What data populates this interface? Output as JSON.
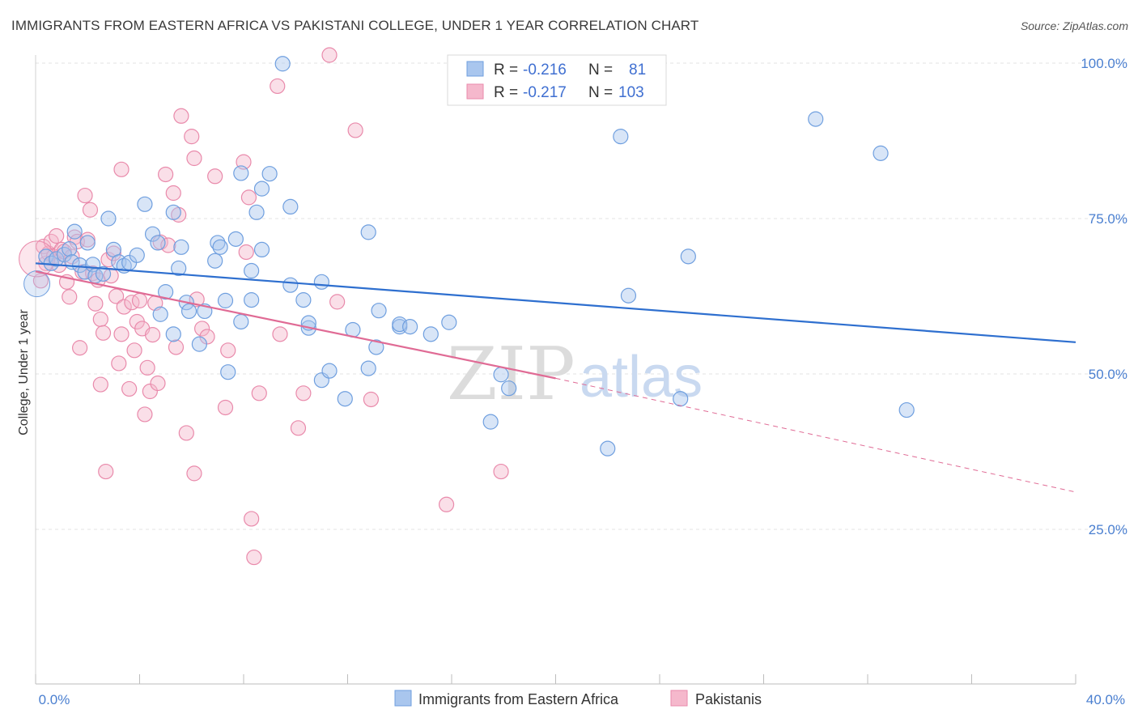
{
  "header": {
    "title": "IMMIGRANTS FROM EASTERN AFRICA VS PAKISTANI COLLEGE, UNDER 1 YEAR CORRELATION CHART",
    "source": "Source: ZipAtlas.com"
  },
  "watermark": {
    "zip": "ZIP",
    "atlas": "atlas"
  },
  "legend": {
    "rows": [
      {
        "r_label": "R =",
        "r_value": "-0.216",
        "n_label": "N =",
        "n_value": "81"
      },
      {
        "r_label": "R =",
        "r_value": "-0.217",
        "n_label": "N =",
        "n_value": "103"
      }
    ]
  },
  "bottom_legend": {
    "items": [
      "Immigrants from Eastern Africa",
      "Pakistanis"
    ]
  },
  "colors": {
    "blue_fill": "#a9c6ee",
    "blue_stroke": "#6f9fdf",
    "blue_line": "#2e6fcf",
    "pink_fill": "#f5b8cc",
    "pink_stroke": "#e98aab",
    "pink_line": "#e06b95",
    "tick_label": "#4a7fd0",
    "grid": "#e3e3e3"
  },
  "chart_data": {
    "type": "scatter",
    "title": "IMMIGRANTS FROM EASTERN AFRICA VS PAKISTANI COLLEGE, UNDER 1 YEAR CORRELATION CHART",
    "xlabel": "",
    "ylabel": "College, Under 1 year",
    "xlim": [
      0,
      40
    ],
    "ylim": [
      0,
      100
    ],
    "x_tick_labels": [
      "0.0%",
      "40.0%"
    ],
    "y_ticks": [
      25,
      50,
      75,
      100
    ],
    "y_tick_labels": [
      "25.0%",
      "50.0%",
      "75.0%",
      "100.0%"
    ],
    "grid": "horizontal dashed",
    "legend_position": "top-center",
    "series": [
      {
        "name": "Immigrants from Eastern Africa",
        "trend": {
          "x": [
            0,
            40
          ],
          "y": [
            67.8,
            55.1
          ]
        },
        "points": [
          [
            0.4,
            68.9
          ],
          [
            0.6,
            67.8
          ],
          [
            0.8,
            68.5
          ],
          [
            1.1,
            69.2
          ],
          [
            1.3,
            70.1
          ],
          [
            1.4,
            68.0
          ],
          [
            1.5,
            72.9
          ],
          [
            1.7,
            67.5
          ],
          [
            1.9,
            66.4
          ],
          [
            2.0,
            71.1
          ],
          [
            2.2,
            67.6
          ],
          [
            2.3,
            65.8
          ],
          [
            2.6,
            66.1
          ],
          [
            2.8,
            75.0
          ],
          [
            3.0,
            70.0
          ],
          [
            3.2,
            68.0
          ],
          [
            3.4,
            67.4
          ],
          [
            3.6,
            67.9
          ],
          [
            3.9,
            69.1
          ],
          [
            4.2,
            77.3
          ],
          [
            4.5,
            72.5
          ],
          [
            4.7,
            71.1
          ],
          [
            4.8,
            59.6
          ],
          [
            5.0,
            63.2
          ],
          [
            5.3,
            56.4
          ],
          [
            5.3,
            76.0
          ],
          [
            5.5,
            67.0
          ],
          [
            5.6,
            70.4
          ],
          [
            5.8,
            61.5
          ],
          [
            5.9,
            60.1
          ],
          [
            6.3,
            54.8
          ],
          [
            6.5,
            60.1
          ],
          [
            6.9,
            68.2
          ],
          [
            7.0,
            71.1
          ],
          [
            7.1,
            70.4
          ],
          [
            7.3,
            61.8
          ],
          [
            7.4,
            50.3
          ],
          [
            7.7,
            71.7
          ],
          [
            7.9,
            58.4
          ],
          [
            7.9,
            82.3
          ],
          [
            8.3,
            61.9
          ],
          [
            8.3,
            66.6
          ],
          [
            8.5,
            76.0
          ],
          [
            8.7,
            70.0
          ],
          [
            8.7,
            79.8
          ],
          [
            9.0,
            82.2
          ],
          [
            9.5,
            99.9
          ],
          [
            9.8,
            76.9
          ],
          [
            9.8,
            64.3
          ],
          [
            10.3,
            61.9
          ],
          [
            10.5,
            57.4
          ],
          [
            10.5,
            58.2
          ],
          [
            11.0,
            49.0
          ],
          [
            11.0,
            64.8
          ],
          [
            11.3,
            50.5
          ],
          [
            11.9,
            46.0
          ],
          [
            12.2,
            57.1
          ],
          [
            12.8,
            50.9
          ],
          [
            12.8,
            72.8
          ],
          [
            13.1,
            54.3
          ],
          [
            13.2,
            60.2
          ],
          [
            14.0,
            57.6
          ],
          [
            14.0,
            58.0
          ],
          [
            14.4,
            57.6
          ],
          [
            15.2,
            56.4
          ],
          [
            15.9,
            58.3
          ],
          [
            17.5,
            42.3
          ],
          [
            17.9,
            49.9
          ],
          [
            18.2,
            47.7
          ],
          [
            22.0,
            38.0
          ],
          [
            22.5,
            88.2
          ],
          [
            22.8,
            62.6
          ],
          [
            24.8,
            46.0
          ],
          [
            25.1,
            68.9
          ],
          [
            30.0,
            91.0
          ],
          [
            32.5,
            85.5
          ],
          [
            33.5,
            44.2
          ]
        ]
      },
      {
        "name": "Pakistanis",
        "trend": {
          "x": [
            0,
            20
          ],
          "y": [
            66.5,
            49.3
          ]
        },
        "trend_dashed": {
          "x": [
            20,
            40
          ],
          "y": [
            49.3,
            31.0
          ]
        },
        "points": [
          [
            0.2,
            65.0
          ],
          [
            0.3,
            70.5
          ],
          [
            0.4,
            67.8
          ],
          [
            0.5,
            69.4
          ],
          [
            0.6,
            71.3
          ],
          [
            0.7,
            68.9
          ],
          [
            0.8,
            72.2
          ],
          [
            0.9,
            67.5
          ],
          [
            1.0,
            70.0
          ],
          [
            1.1,
            69.7
          ],
          [
            1.2,
            64.8
          ],
          [
            1.3,
            62.4
          ],
          [
            1.4,
            68.9
          ],
          [
            1.5,
            72.0
          ],
          [
            1.6,
            71.3
          ],
          [
            1.7,
            54.2
          ],
          [
            1.8,
            66.4
          ],
          [
            1.9,
            78.7
          ],
          [
            2.0,
            71.6
          ],
          [
            2.1,
            76.4
          ],
          [
            2.2,
            66.2
          ],
          [
            2.3,
            61.3
          ],
          [
            2.4,
            65.1
          ],
          [
            2.5,
            58.8
          ],
          [
            2.5,
            48.3
          ],
          [
            2.6,
            56.6
          ],
          [
            2.7,
            34.3
          ],
          [
            2.8,
            68.4
          ],
          [
            2.9,
            65.8
          ],
          [
            3.0,
            69.4
          ],
          [
            3.1,
            62.5
          ],
          [
            3.2,
            51.7
          ],
          [
            3.3,
            56.4
          ],
          [
            3.3,
            82.9
          ],
          [
            3.4,
            60.8
          ],
          [
            3.6,
            47.6
          ],
          [
            3.7,
            61.5
          ],
          [
            3.8,
            53.8
          ],
          [
            3.9,
            58.4
          ],
          [
            4.0,
            61.8
          ],
          [
            4.1,
            57.3
          ],
          [
            4.2,
            43.5
          ],
          [
            4.3,
            51.0
          ],
          [
            4.4,
            47.2
          ],
          [
            4.5,
            56.3
          ],
          [
            4.6,
            61.4
          ],
          [
            4.7,
            48.5
          ],
          [
            4.8,
            71.2
          ],
          [
            5.0,
            82.1
          ],
          [
            5.1,
            70.7
          ],
          [
            5.3,
            79.1
          ],
          [
            5.4,
            54.3
          ],
          [
            5.5,
            75.6
          ],
          [
            5.6,
            91.5
          ],
          [
            5.8,
            40.5
          ],
          [
            6.0,
            88.2
          ],
          [
            6.1,
            84.7
          ],
          [
            6.1,
            34.0
          ],
          [
            6.2,
            62.0
          ],
          [
            6.4,
            57.3
          ],
          [
            6.6,
            56.0
          ],
          [
            6.9,
            81.8
          ],
          [
            7.3,
            44.6
          ],
          [
            7.4,
            53.8
          ],
          [
            8.0,
            84.1
          ],
          [
            8.1,
            69.6
          ],
          [
            8.2,
            78.4
          ],
          [
            8.3,
            26.7
          ],
          [
            8.4,
            20.5
          ],
          [
            8.6,
            46.9
          ],
          [
            9.3,
            96.3
          ],
          [
            9.4,
            56.4
          ],
          [
            10.1,
            41.3
          ],
          [
            10.3,
            46.9
          ],
          [
            11.3,
            101.3
          ],
          [
            11.6,
            61.6
          ],
          [
            12.3,
            89.2
          ],
          [
            12.9,
            45.9
          ],
          [
            15.8,
            29.0
          ],
          [
            17.9,
            34.3
          ]
        ]
      }
    ]
  }
}
